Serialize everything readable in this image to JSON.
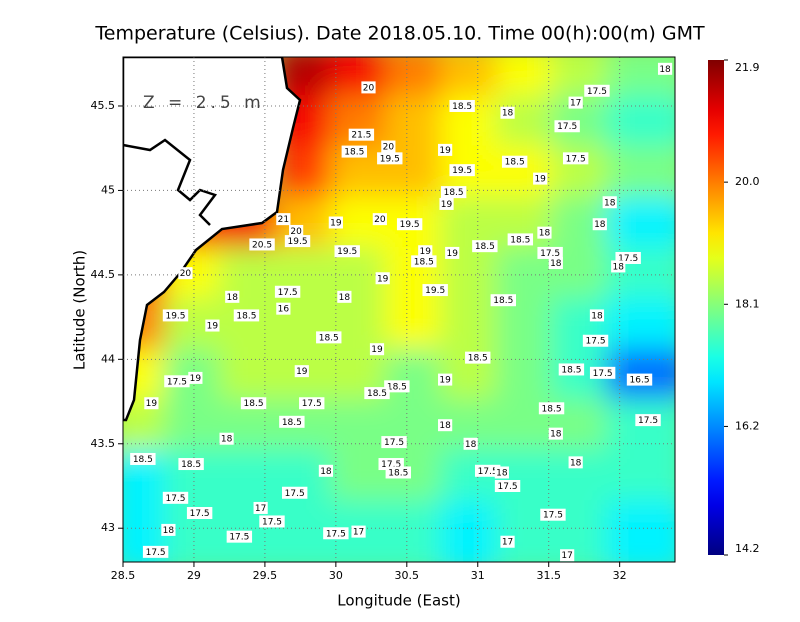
{
  "chart_data": {
    "type": "heatmap",
    "title": "Temperature (Celsius). Date 2018.05.10. Time 00(h):00(m) GMT",
    "annotation": "Z = 2.5 m",
    "x_label": "Longitude (East)",
    "y_label": "Latitude (North)",
    "xlim": [
      28.5,
      32.39
    ],
    "ylim": [
      42.8,
      45.79
    ],
    "xticks": [
      28.5,
      29,
      29.5,
      30,
      30.5,
      31,
      31.5,
      32
    ],
    "yticks": [
      43,
      43.5,
      44,
      44.5,
      45,
      45.5
    ],
    "grid": true,
    "clim": [
      14.2,
      21.9
    ],
    "cticks": [
      14.2,
      16.2,
      18.1,
      {
        "value": 20,
        "label": "20.0"
      },
      21.9
    ],
    "field": {
      "lon": [
        28.69,
        29.08,
        29.47,
        29.86,
        30.25,
        30.64,
        31.03,
        31.42,
        31.81,
        32.2
      ],
      "lat": [
        45.64,
        45.34,
        45.04,
        44.74,
        44.44,
        44.14,
        43.84,
        43.54,
        43.24,
        42.94
      ],
      "values": [
        [
          null,
          null,
          null,
          21.5,
          21,
          20,
          19.5,
          19,
          18.5,
          18
        ],
        [
          null,
          null,
          null,
          21,
          20,
          19.5,
          19,
          18.5,
          18,
          17.5
        ],
        [
          null,
          null,
          null,
          20.5,
          19.5,
          19.5,
          19,
          19,
          18.5,
          18
        ],
        [
          null,
          21,
          21,
          19.5,
          19,
          19,
          18.5,
          18.5,
          18,
          17
        ],
        [
          20.5,
          19,
          18.5,
          18.5,
          18.5,
          19,
          18.5,
          18,
          18,
          17.5
        ],
        [
          20,
          18.5,
          18.5,
          18.5,
          18.5,
          19,
          18.5,
          18,
          17.5,
          17
        ],
        [
          19,
          18,
          18.5,
          18.5,
          18.5,
          18,
          18.5,
          18,
          17.5,
          16
        ],
        [
          18.5,
          18,
          18,
          18,
          18,
          18,
          18,
          18,
          18,
          17.5
        ],
        [
          17,
          17.5,
          17.5,
          17.5,
          18,
          18,
          17.5,
          17.5,
          17.5,
          17.5
        ],
        [
          17,
          17.5,
          17.5,
          17.5,
          17.5,
          17.5,
          17,
          17.5,
          17.5,
          17
        ]
      ]
    },
    "contour_labels": [
      {
        "lon": 30.23,
        "lat": 45.61,
        "value": 20
      },
      {
        "lon": 30.89,
        "lat": 45.5,
        "value": 18.5
      },
      {
        "lon": 31.21,
        "lat": 45.46,
        "value": 18
      },
      {
        "lon": 31.69,
        "lat": 45.52,
        "value": 17
      },
      {
        "lon": 31.84,
        "lat": 45.59,
        "value": 17.5
      },
      {
        "lon": 31.63,
        "lat": 45.38,
        "value": 17.5
      },
      {
        "lon": 32.32,
        "lat": 45.72,
        "value": 18
      },
      {
        "lon": 30.18,
        "lat": 45.33,
        "value": 21.5
      },
      {
        "lon": 30.13,
        "lat": 45.23,
        "value": 18.5
      },
      {
        "lon": 30.37,
        "lat": 45.26,
        "value": 20
      },
      {
        "lon": 30.38,
        "lat": 45.19,
        "value": 19.5
      },
      {
        "lon": 30.77,
        "lat": 45.24,
        "value": 19
      },
      {
        "lon": 30.89,
        "lat": 45.12,
        "value": 19.5
      },
      {
        "lon": 31.26,
        "lat": 45.17,
        "value": 18.5
      },
      {
        "lon": 31.69,
        "lat": 45.19,
        "value": 17.5
      },
      {
        "lon": 31.44,
        "lat": 45.07,
        "value": 19
      },
      {
        "lon": 30.83,
        "lat": 44.99,
        "value": 18.5
      },
      {
        "lon": 30.78,
        "lat": 44.92,
        "value": 19
      },
      {
        "lon": 30.31,
        "lat": 44.83,
        "value": 20
      },
      {
        "lon": 30.52,
        "lat": 44.8,
        "value": 19.5
      },
      {
        "lon": 31.93,
        "lat": 44.93,
        "value": 18
      },
      {
        "lon": 31.86,
        "lat": 44.8,
        "value": 18
      },
      {
        "lon": 31.47,
        "lat": 44.75,
        "value": 18
      },
      {
        "lon": 31.3,
        "lat": 44.71,
        "value": 18.5
      },
      {
        "lon": 31.05,
        "lat": 44.67,
        "value": 18.5
      },
      {
        "lon": 31.51,
        "lat": 44.63,
        "value": 17.5
      },
      {
        "lon": 32.06,
        "lat": 44.6,
        "value": 17.5
      },
      {
        "lon": 31.99,
        "lat": 44.55,
        "value": 18
      },
      {
        "lon": 31.55,
        "lat": 44.57,
        "value": 18
      },
      {
        "lon": 30.63,
        "lat": 44.64,
        "value": 19
      },
      {
        "lon": 30.62,
        "lat": 44.58,
        "value": 18.5
      },
      {
        "lon": 30.82,
        "lat": 44.63,
        "value": 19
      },
      {
        "lon": 30.33,
        "lat": 44.48,
        "value": 19
      },
      {
        "lon": 30.7,
        "lat": 44.41,
        "value": 19.5
      },
      {
        "lon": 31.18,
        "lat": 44.35,
        "value": 18.5
      },
      {
        "lon": 31.84,
        "lat": 44.26,
        "value": 18
      },
      {
        "lon": 31.83,
        "lat": 44.11,
        "value": 17.5
      },
      {
        "lon": 30.08,
        "lat": 44.64,
        "value": 19.5
      },
      {
        "lon": 30.0,
        "lat": 44.81,
        "value": 19
      },
      {
        "lon": 29.63,
        "lat": 44.83,
        "value": 21
      },
      {
        "lon": 29.72,
        "lat": 44.76,
        "value": 20
      },
      {
        "lon": 29.73,
        "lat": 44.7,
        "value": 19.5
      },
      {
        "lon": 29.48,
        "lat": 44.68,
        "value": 20.5
      },
      {
        "lon": 28.94,
        "lat": 44.51,
        "value": 20
      },
      {
        "lon": 29.66,
        "lat": 44.4,
        "value": 17.5
      },
      {
        "lon": 30.06,
        "lat": 44.37,
        "value": 18
      },
      {
        "lon": 29.63,
        "lat": 44.3,
        "value": 16
      },
      {
        "lon": 29.27,
        "lat": 44.37,
        "value": 18
      },
      {
        "lon": 29.37,
        "lat": 44.26,
        "value": 18.5
      },
      {
        "lon": 28.87,
        "lat": 44.26,
        "value": 19.5
      },
      {
        "lon": 29.13,
        "lat": 44.2,
        "value": 19
      },
      {
        "lon": 29.95,
        "lat": 44.13,
        "value": 18.5
      },
      {
        "lon": 30.29,
        "lat": 44.06,
        "value": 19
      },
      {
        "lon": 31.0,
        "lat": 44.01,
        "value": 18.5
      },
      {
        "lon": 31.66,
        "lat": 43.94,
        "value": 18.5
      },
      {
        "lon": 31.88,
        "lat": 43.92,
        "value": 17.5
      },
      {
        "lon": 32.14,
        "lat": 43.88,
        "value": 16.5
      },
      {
        "lon": 29.76,
        "lat": 43.93,
        "value": 19
      },
      {
        "lon": 30.77,
        "lat": 43.88,
        "value": 19
      },
      {
        "lon": 30.43,
        "lat": 43.84,
        "value": 18.5
      },
      {
        "lon": 30.29,
        "lat": 43.8,
        "value": 18.5
      },
      {
        "lon": 28.88,
        "lat": 43.87,
        "value": 17.5
      },
      {
        "lon": 29.01,
        "lat": 43.89,
        "value": 19
      },
      {
        "lon": 28.7,
        "lat": 43.74,
        "value": 19
      },
      {
        "lon": 29.42,
        "lat": 43.74,
        "value": 18.5
      },
      {
        "lon": 29.83,
        "lat": 43.74,
        "value": 17.5
      },
      {
        "lon": 29.69,
        "lat": 43.63,
        "value": 18.5
      },
      {
        "lon": 31.52,
        "lat": 43.71,
        "value": 18.5
      },
      {
        "lon": 30.77,
        "lat": 43.61,
        "value": 18
      },
      {
        "lon": 31.55,
        "lat": 43.56,
        "value": 18
      },
      {
        "lon": 32.2,
        "lat": 43.64,
        "value": 17.5
      },
      {
        "lon": 29.23,
        "lat": 43.53,
        "value": 18
      },
      {
        "lon": 30.41,
        "lat": 43.51,
        "value": 17.5
      },
      {
        "lon": 30.95,
        "lat": 43.5,
        "value": 18
      },
      {
        "lon": 28.64,
        "lat": 43.41,
        "value": 18.5
      },
      {
        "lon": 28.98,
        "lat": 43.38,
        "value": 18.5
      },
      {
        "lon": 30.39,
        "lat": 43.38,
        "value": 17.5
      },
      {
        "lon": 30.44,
        "lat": 43.33,
        "value": 18.5
      },
      {
        "lon": 29.93,
        "lat": 43.34,
        "value": 18
      },
      {
        "lon": 31.07,
        "lat": 43.34,
        "value": 17.5
      },
      {
        "lon": 31.17,
        "lat": 43.33,
        "value": 18
      },
      {
        "lon": 31.69,
        "lat": 43.39,
        "value": 18
      },
      {
        "lon": 31.21,
        "lat": 43.25,
        "value": 17.5
      },
      {
        "lon": 28.87,
        "lat": 43.18,
        "value": 17.5
      },
      {
        "lon": 29.71,
        "lat": 43.21,
        "value": 17.5
      },
      {
        "lon": 29.04,
        "lat": 43.09,
        "value": 17.5
      },
      {
        "lon": 29.47,
        "lat": 43.12,
        "value": 17
      },
      {
        "lon": 29.55,
        "lat": 43.04,
        "value": 17.5
      },
      {
        "lon": 31.53,
        "lat": 43.08,
        "value": 17.5
      },
      {
        "lon": 28.82,
        "lat": 42.99,
        "value": 18
      },
      {
        "lon": 29.32,
        "lat": 42.95,
        "value": 17.5
      },
      {
        "lon": 30.0,
        "lat": 42.97,
        "value": 17.5
      },
      {
        "lon": 30.16,
        "lat": 42.98,
        "value": 17
      },
      {
        "lon": 31.21,
        "lat": 42.92,
        "value": 17
      },
      {
        "lon": 28.73,
        "lat": 42.86,
        "value": 17.5
      },
      {
        "lon": 31.63,
        "lat": 42.84,
        "value": 17
      }
    ]
  }
}
